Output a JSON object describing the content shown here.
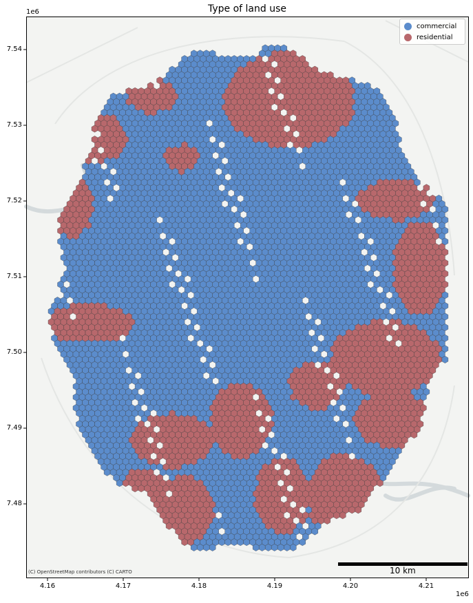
{
  "map": {
    "title": "Type of land use",
    "y_exponent": "1e6",
    "x_exponent": "1e6",
    "y_ticks": [
      {
        "label": "7.54",
        "value": 7.54
      },
      {
        "label": "7.53",
        "value": 7.53
      },
      {
        "label": "7.52",
        "value": 7.52
      },
      {
        "label": "7.51",
        "value": 7.51
      },
      {
        "label": "7.50",
        "value": 7.5
      },
      {
        "label": "7.49",
        "value": 7.49
      },
      {
        "label": "7.48",
        "value": 7.48
      }
    ],
    "x_ticks": [
      {
        "label": "4.16",
        "value": 4.16
      },
      {
        "label": "4.17",
        "value": 4.17
      },
      {
        "label": "4.18",
        "value": 4.18
      },
      {
        "label": "4.19",
        "value": 4.19
      },
      {
        "label": "4.20",
        "value": 4.2
      },
      {
        "label": "4.21",
        "value": 4.21
      }
    ],
    "legend": {
      "placement": "top-right",
      "items": [
        {
          "label": "commercial",
          "color": "#5b8ccc"
        },
        {
          "label": "residential",
          "color": "#b8686c"
        }
      ]
    },
    "scale_bar": {
      "label": "10 km"
    },
    "attribution": "(C) OpenStreetMap contributors (C) CARTO",
    "colors": {
      "commercial": "#5b8ccc",
      "residential": "#b8686c",
      "basemap": "#f3f4f2",
      "water": "#d4dadc"
    }
  }
}
